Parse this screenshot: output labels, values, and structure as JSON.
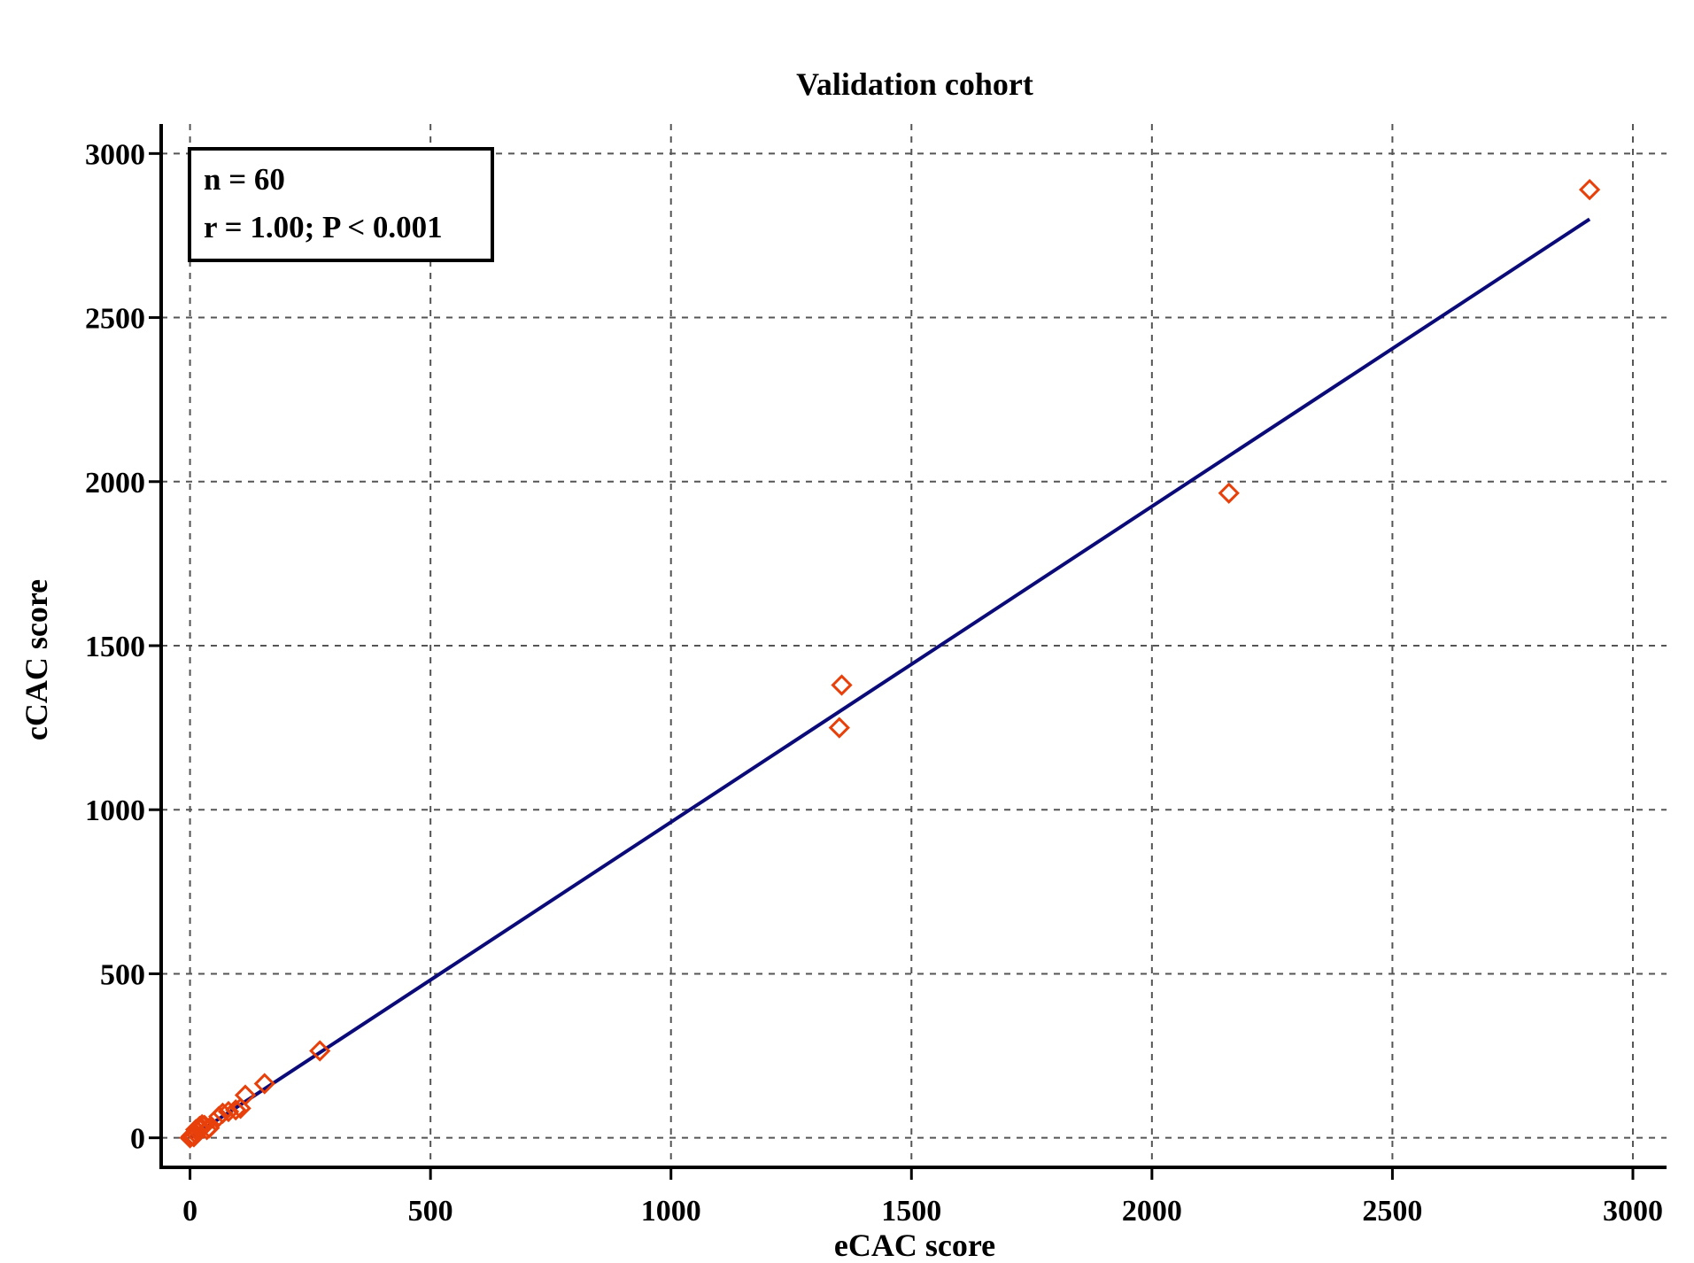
{
  "chart_data": {
    "type": "scatter",
    "title": "Validation cohort",
    "xlabel": "eCAC score",
    "ylabel": "cCAC score",
    "xlim": [
      -60,
      3070
    ],
    "ylim": [
      -90,
      3090
    ],
    "xticks": [
      0,
      500,
      1000,
      1500,
      2000,
      2500,
      3000
    ],
    "yticks": [
      0,
      500,
      1000,
      1500,
      2000,
      2500,
      3000
    ],
    "grid": true,
    "stats_box": {
      "line1": "n = 60",
      "line2": "r = 1.00; P < 0.001",
      "placement": "top-left"
    },
    "marker": {
      "shape": "diamond",
      "filled": false,
      "color": "#e8400a"
    },
    "regression_line": {
      "color": "#0a0a78",
      "x": [
        0,
        2910
      ],
      "y": [
        0,
        2800
      ]
    },
    "series": [
      {
        "x": [
          0,
          3,
          5,
          8,
          10,
          12,
          15,
          18,
          20,
          22,
          25,
          30,
          35,
          40,
          60,
          68,
          80,
          95,
          105,
          115,
          155,
          270,
          1350,
          1355,
          2160,
          2910
        ],
        "y": [
          0,
          5,
          8,
          3,
          15,
          25,
          20,
          30,
          35,
          28,
          40,
          38,
          25,
          30,
          65,
          75,
          80,
          85,
          90,
          130,
          165,
          265,
          1250,
          1380,
          1965,
          2890
        ]
      }
    ]
  }
}
